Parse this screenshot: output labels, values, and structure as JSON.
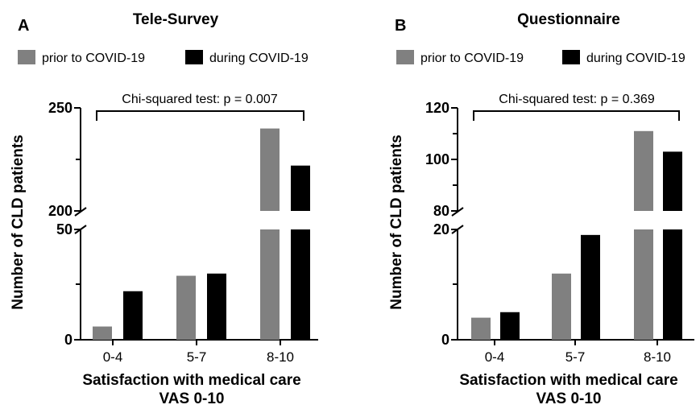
{
  "chart_data": [
    {
      "type": "bar",
      "panel": "A",
      "title": "Tele-Survey",
      "categories": [
        "0-4",
        "5-7",
        "8-10"
      ],
      "series": [
        {
          "name": "prior to COVID-19",
          "color": "#808080",
          "values": [
            6,
            29,
            240
          ]
        },
        {
          "name": "during COVID-19",
          "color": "#000000",
          "values": [
            22,
            30,
            222
          ]
        }
      ],
      "xlabel": [
        "Satisfaction with medical care",
        "VAS 0-10"
      ],
      "ylabel": "Number of CLD patients",
      "y_axis_break": {
        "lower_segment": [
          0,
          50
        ],
        "upper_segment": [
          200,
          250
        ]
      },
      "yticks_lower": [
        "0",
        "50"
      ],
      "yticks_upper": [
        "200",
        "250"
      ],
      "annotation": "Chi-squared test: p = 0.007",
      "legend_position": "top-left"
    },
    {
      "type": "bar",
      "panel": "B",
      "title": "Questionnaire",
      "categories": [
        "0-4",
        "5-7",
        "8-10"
      ],
      "series": [
        {
          "name": "prior to COVID-19",
          "color": "#808080",
          "values": [
            4,
            12,
            111
          ]
        },
        {
          "name": "during COVID-19",
          "color": "#000000",
          "values": [
            5,
            19,
            103
          ]
        }
      ],
      "xlabel": [
        "Satisfaction with medical care",
        "VAS 0-10"
      ],
      "ylabel": "Number of CLD patients",
      "y_axis_break": {
        "lower_segment": [
          0,
          20
        ],
        "upper_segment": [
          80,
          120
        ]
      },
      "yticks_lower": [
        "0",
        "20"
      ],
      "yticks_upper": [
        "80",
        "100",
        "120"
      ],
      "annotation": "Chi-squared test: p = 0.369",
      "legend_position": "top-left"
    }
  ]
}
